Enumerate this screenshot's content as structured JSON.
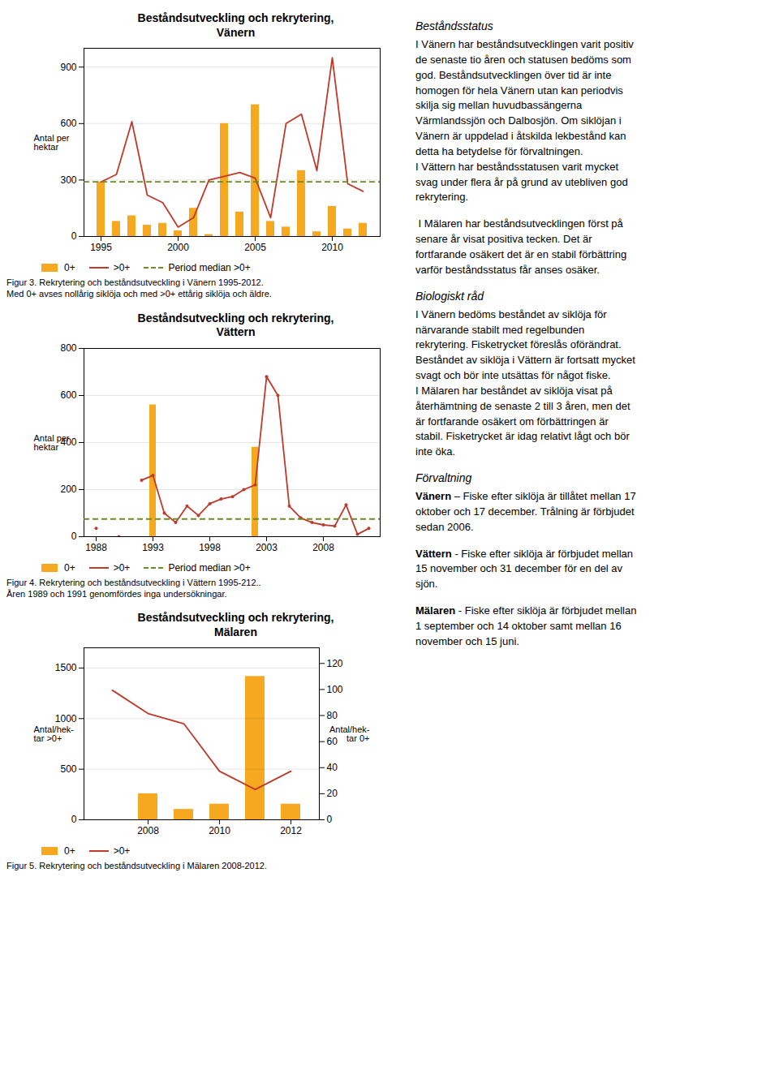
{
  "chart_data": [
    {
      "type": "bar",
      "title": "Beståndsutveckling och rekrytering,\nVänern",
      "ylabel": "Antal per\nhektar",
      "caption": "Figur 3. Rekrytering och beståndsutveckling i Vänern 1995-2012.\nMed 0+ avses nollårig siklöja och med >0+ ettårig siklöja och äldre.",
      "categories": [
        1995,
        1996,
        1997,
        1998,
        1999,
        2000,
        2001,
        2002,
        2003,
        2004,
        2005,
        2006,
        2007,
        2008,
        2009,
        2010,
        2011,
        2012
      ],
      "series": [
        {
          "name": "0+",
          "type": "bar",
          "color": "#F5A820",
          "values": [
            290,
            80,
            110,
            60,
            70,
            30,
            150,
            10,
            600,
            130,
            700,
            80,
            50,
            350,
            25,
            160,
            40,
            70
          ]
        },
        {
          "name": ">0+",
          "type": "line",
          "color": "#C0392B",
          "values": [
            290,
            330,
            610,
            220,
            180,
            50,
            100,
            300,
            320,
            340,
            310,
            100,
            600,
            650,
            350,
            950,
            280,
            240
          ]
        },
        {
          "name": "Period median >0+",
          "type": "hline",
          "color": "#6B8C21",
          "line_style": "dashed",
          "value": 290
        }
      ],
      "ylim": [
        0,
        1000
      ],
      "yticks": [
        0,
        300,
        600,
        900
      ],
      "xticks": [
        1995,
        2000,
        2005,
        2010
      ],
      "grid": true,
      "legend": "bottom"
    },
    {
      "type": "bar",
      "title": "Beståndsutveckling och rekrytering,\nVättern",
      "ylabel": "Antal per\nhektar",
      "caption": "Figur 4. Rekrytering och beståndsutveckling i Vättern 1995-212..\nÅren 1989 och 1991 genomfördes inga undersökningar.",
      "categories": [
        1988,
        1989,
        1990,
        1991,
        1992,
        1993,
        1994,
        1995,
        1996,
        1997,
        1998,
        1999,
        2000,
        2001,
        2002,
        2003,
        2004,
        2005,
        2006,
        2007,
        2008,
        2009,
        2010,
        2011,
        2012
      ],
      "series": [
        {
          "name": "0+",
          "type": "bar",
          "color": "#F5A820",
          "values": [
            0,
            0,
            0,
            0,
            0,
            560,
            0,
            0,
            0,
            0,
            0,
            0,
            0,
            0,
            380,
            0,
            0,
            0,
            0,
            0,
            0,
            0,
            0,
            0,
            0
          ]
        },
        {
          "name": ">0+",
          "type": "line",
          "color": "#C0392B",
          "marker": "circle",
          "values": [
            35,
            null,
            0,
            null,
            240,
            260,
            100,
            60,
            130,
            90,
            140,
            160,
            170,
            200,
            220,
            680,
            600,
            130,
            80,
            60,
            50,
            45,
            135,
            10,
            35
          ]
        },
        {
          "name": "Period median >0+",
          "type": "hline",
          "color": "#6B8C21",
          "line_style": "dashed",
          "value": 75
        }
      ],
      "ylim": [
        0,
        800
      ],
      "yticks": [
        0,
        200,
        400,
        600,
        800
      ],
      "xticks": [
        1988,
        1993,
        1998,
        2003,
        2008
      ],
      "grid": true,
      "legend": "bottom"
    },
    {
      "type": "bar",
      "title": "Beståndsutveckling och rekrytering,\nMälaren",
      "ylabel": "Antal/hek-\ntar >0+",
      "y2label": "Antal/hek-\ntar 0+",
      "caption": "Figur 5. Rekrytering och beståndsutveckling i Mälaren 2008-2012.",
      "categories": [
        2007,
        2008,
        2009,
        2010,
        2011,
        2012
      ],
      "series": [
        {
          "name": "0+",
          "type": "bar",
          "axis": "y2",
          "color": "#F5A820",
          "values": [
            0,
            20,
            8,
            12,
            110,
            12
          ]
        },
        {
          "name": ">0+",
          "type": "line",
          "color": "#C0392B",
          "values": [
            1280,
            1050,
            950,
            480,
            300,
            480
          ]
        }
      ],
      "ylim": [
        0,
        1700
      ],
      "yticks": [
        0,
        500,
        1000,
        1500
      ],
      "y2lim": [
        0,
        132
      ],
      "y2ticks": [
        0,
        20,
        40,
        60,
        80,
        100,
        120
      ],
      "xticks": [
        2008,
        2010,
        2012
      ],
      "grid": true,
      "legend": "bottom"
    }
  ],
  "text_panel": [
    {
      "heading": "Beståndsstatus",
      "paragraphs": [
        "I Vänern har beståndsutvecklingen varit positiv\nde senaste tio åren och statusen bedöms som\ngod. Beståndsutvecklingen över tid är inte\nhomogen för hela Vänern utan kan periodvis\nskilja sig mellan huvudbassängerna\nVärmlandssjön och Dalbosjön. Om siklöjan i\nVänern är uppdelad i åtskilda lekbestånd kan\ndetta ha betydelse för förvaltningen.\nI Vättern har beståndsstatusen varit mycket\nsvag under flera år på grund av utebliven god\nrekrytering.",
        " I Mälaren har beståndsutvecklingen först på\nsenare år visat positiva tecken. Det är\nfortfarande osäkert det är en stabil förbättring\nvarför beståndsstatus får anses osäker."
      ]
    },
    {
      "heading": "Biologiskt råd",
      "paragraphs": [
        "I Vänern bedöms beståndet av siklöja för\nnärvarande stabilt med regelbunden\nrekrytering. Fisketrycket föreslås oförändrat.\nBeståndet av siklöja i Vättern är fortsatt mycket\nsvagt och bör inte utsättas för något fiske.\nI Mälaren har beståndet av siklöja visat på\nåterhämtning de senaste 2 till 3 åren, men det\när fortfarande osäkert om förbättringen är\nstabil. Fisketrycket är idag relativt lågt och bör\ninte öka."
      ]
    },
    {
      "heading": "Förvaltning",
      "paragraphs": [
        {
          "bold": "Vänern",
          "text": " – Fiske efter siklöja är tillåtet mellan 17\noktober och 17 december. Trålning är förbjudet\nsedan 2006."
        },
        {
          "bold": "Vättern",
          "text": " - Fiske efter siklöja är förbjudet mellan\n15 november och 31 december för en del av\nsjön."
        },
        {
          "bold": "Mälaren",
          "text": " - Fiske efter siklöja är förbjudet mellan\n1 september och 14 oktober samt mellan 16\nnovember och 15 juni."
        }
      ]
    }
  ]
}
